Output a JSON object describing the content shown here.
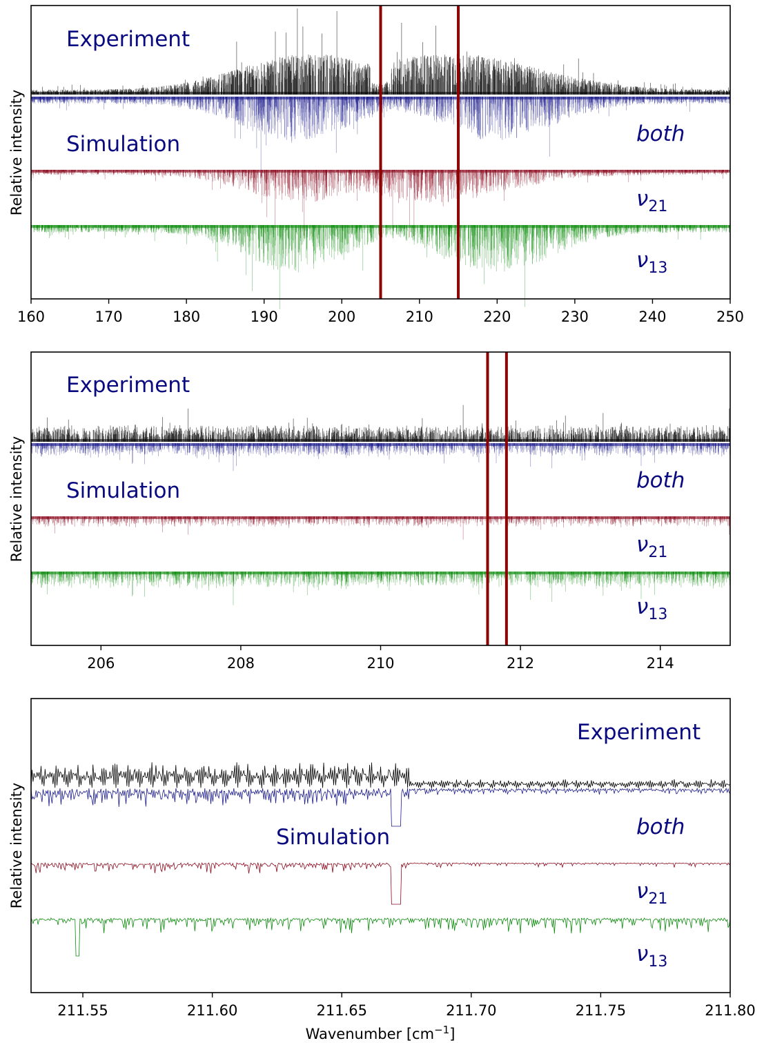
{
  "chart_data": [
    {
      "type": "line",
      "ylabel": "Relative intensity",
      "xlabel": "",
      "xlim": [
        160,
        250
      ],
      "xticks": [
        160,
        170,
        180,
        190,
        200,
        210,
        220,
        230,
        240,
        250
      ],
      "xtick_labels": [
        "160",
        "170",
        "180",
        "190",
        "200",
        "210",
        "220",
        "230",
        "240",
        "250"
      ],
      "annotations": {
        "experiment": "Experiment",
        "simulation": "Simulation",
        "both": "both",
        "nu21_base": "ν",
        "nu21_sub": "21",
        "nu13_base": "ν",
        "nu13_sub": "13"
      },
      "markers": [
        205,
        215
      ],
      "series": [
        {
          "name": "Experiment",
          "color": "#000000",
          "envelope_centers": [
            196,
            214
          ],
          "envelope_widths": [
            9,
            11
          ]
        },
        {
          "name": "both",
          "color": "#1a1a8c",
          "envelope_centers": [
            194,
            220
          ],
          "envelope_widths": [
            7,
            7
          ]
        },
        {
          "name": "ν21",
          "color": "#8b0a1e",
          "envelope_centers": [
            195,
            212
          ],
          "envelope_widths": [
            7,
            9
          ]
        },
        {
          "name": "ν13",
          "color": "#0a8a0a",
          "envelope_centers": [
            194,
            220
          ],
          "envelope_widths": [
            6,
            7
          ]
        }
      ]
    },
    {
      "type": "line",
      "ylabel": "Relative intensity",
      "xlabel": "",
      "xlim": [
        205,
        215
      ],
      "xticks": [
        206,
        208,
        210,
        212,
        214
      ],
      "xtick_labels": [
        "206",
        "208",
        "210",
        "212",
        "214"
      ],
      "annotations": {
        "experiment": "Experiment",
        "simulation": "Simulation",
        "both": "both",
        "nu21_base": "ν",
        "nu21_sub": "21",
        "nu13_base": "ν",
        "nu13_sub": "13"
      },
      "markers": [
        211.53,
        211.8
      ],
      "series": [
        {
          "name": "Experiment",
          "color": "#000000"
        },
        {
          "name": "both",
          "color": "#1a1a8c"
        },
        {
          "name": "ν21",
          "color": "#8b0a1e"
        },
        {
          "name": "ν13",
          "color": "#0a8a0a"
        }
      ]
    },
    {
      "type": "line",
      "ylabel": "Relative intensity",
      "xlabel": "Wavenumber [cm",
      "xlabel_sup": "−1",
      "xlabel_end": "]",
      "xlim": [
        211.53,
        211.8
      ],
      "xticks": [
        211.55,
        211.6,
        211.65,
        211.7,
        211.75,
        211.8
      ],
      "xtick_labels": [
        "211.55",
        "211.60",
        "211.65",
        "211.70",
        "211.75",
        "211.80"
      ],
      "annotations": {
        "experiment": "Experiment",
        "simulation": "Simulation",
        "both": "both",
        "nu21_base": "ν",
        "nu21_sub": "21",
        "nu13_base": "ν",
        "nu13_sub": "13"
      },
      "markers": [],
      "series": [
        {
          "name": "Experiment",
          "color": "#000000"
        },
        {
          "name": "both",
          "color": "#1a1a8c"
        },
        {
          "name": "ν21",
          "color": "#8b0a1e"
        },
        {
          "name": "ν13",
          "color": "#0a8a0a"
        }
      ]
    }
  ]
}
